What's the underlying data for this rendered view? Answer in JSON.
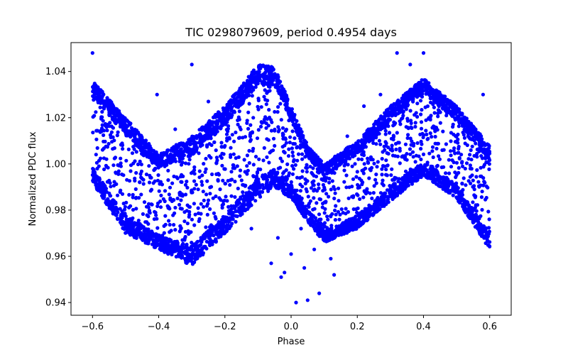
{
  "chart_data": {
    "type": "scatter",
    "title": "TIC 0298079609, period 0.4954 days",
    "xlabel": "Phase",
    "ylabel": "Normalized PDC flux",
    "xlim": [
      -0.665,
      0.665
    ],
    "ylim": [
      0.9345,
      1.0525
    ],
    "xticks": [
      -0.6,
      -0.4,
      -0.2,
      0.0,
      0.2,
      0.4,
      0.6
    ],
    "xtick_labels": [
      "−0.6",
      "−0.4",
      "−0.2",
      "0.0",
      "0.2",
      "0.4",
      "0.6"
    ],
    "yticks": [
      0.94,
      0.96,
      0.98,
      1.0,
      1.02,
      1.04
    ],
    "ytick_labels": [
      "0.94",
      "0.96",
      "0.98",
      "1.00",
      "1.02",
      "1.04"
    ],
    "grid": false,
    "marker_color": "#0000ff",
    "series": [
      {
        "name": "",
        "description_of_shape": "dense band, period-folded light curve",
        "envelope": {
          "x": [
            -0.6,
            -0.5,
            -0.4,
            -0.3,
            -0.2,
            -0.1,
            -0.05,
            0.0,
            0.05,
            0.1,
            0.2,
            0.3,
            0.4,
            0.5,
            0.6
          ],
          "upper": [
            1.036,
            1.02,
            1.004,
            1.012,
            1.025,
            1.043,
            1.042,
            1.025,
            1.008,
            1.0,
            1.01,
            1.025,
            1.037,
            1.025,
            1.008
          ],
          "lower": [
            0.992,
            0.97,
            0.963,
            0.956,
            0.97,
            0.985,
            0.99,
            0.985,
            0.975,
            0.966,
            0.972,
            0.984,
            0.995,
            0.985,
            0.963
          ]
        },
        "outliers": [
          [
            -0.6,
            1.048
          ],
          [
            -0.3,
            1.043
          ],
          [
            -0.405,
            1.03
          ],
          [
            -0.25,
            1.027
          ],
          [
            -0.12,
            0.972
          ],
          [
            -0.06,
            0.957
          ],
          [
            -0.04,
            0.968
          ],
          [
            -0.03,
            0.951
          ],
          [
            -0.02,
            0.953
          ],
          [
            0.0,
            0.961
          ],
          [
            0.015,
            0.94
          ],
          [
            0.03,
            0.972
          ],
          [
            0.04,
            0.955
          ],
          [
            0.05,
            0.941
          ],
          [
            0.07,
            0.963
          ],
          [
            0.085,
            0.944
          ],
          [
            0.1,
            0.967
          ],
          [
            0.12,
            0.959
          ],
          [
            0.13,
            0.952
          ],
          [
            0.32,
            1.048
          ],
          [
            0.36,
            1.043
          ],
          [
            0.4,
            1.048
          ],
          [
            0.27,
            1.03
          ],
          [
            0.58,
            1.03
          ],
          [
            0.22,
            1.025
          ],
          [
            -0.35,
            1.015
          ],
          [
            -0.45,
            1.005
          ],
          [
            0.17,
            1.012
          ]
        ]
      }
    ]
  }
}
